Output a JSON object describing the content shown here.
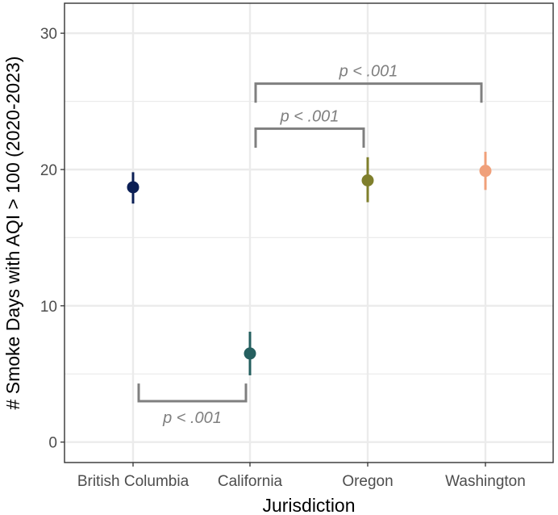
{
  "chart_data": {
    "type": "scatter",
    "title": "",
    "xlabel": "Jurisdiction",
    "ylabel": "# Smoke Days with AQI > 100 (2020-2023)",
    "ylim": [
      -1.5,
      32.2
    ],
    "yticks": [
      0,
      10,
      20,
      30
    ],
    "ytick_labels": [
      "0",
      "10",
      "20",
      "30"
    ],
    "categories": [
      "British Columbia",
      "California",
      "Oregon",
      "Washington"
    ],
    "grid": true,
    "points": [
      {
        "category": "British Columbia",
        "value": 18.7,
        "lower": 17.5,
        "upper": 19.8,
        "color": "#0b1f55"
      },
      {
        "category": "California",
        "value": 6.5,
        "lower": 4.9,
        "upper": 8.1,
        "color": "#255f5f"
      },
      {
        "category": "Oregon",
        "value": 19.2,
        "lower": 17.6,
        "upper": 20.9,
        "color": "#7f7f2c"
      },
      {
        "category": "Washington",
        "value": 19.9,
        "lower": 18.5,
        "upper": 21.3,
        "color": "#f0a07a"
      }
    ],
    "annotations": [
      {
        "from": "British Columbia",
        "to": "California",
        "y": 3.0,
        "tip": 4.3,
        "label": "p < .001",
        "direction": "down"
      },
      {
        "from": "California",
        "to": "Oregon",
        "y": 23.0,
        "tip": 21.6,
        "label": "p < .001",
        "direction": "up"
      },
      {
        "from": "California",
        "to": "Washington",
        "y": 26.3,
        "tip": 24.9,
        "label": "p < .001",
        "direction": "up"
      }
    ],
    "colors": {
      "grid": "#ebebeb",
      "border": "#333333",
      "bracket": "#7f7f7f"
    }
  }
}
